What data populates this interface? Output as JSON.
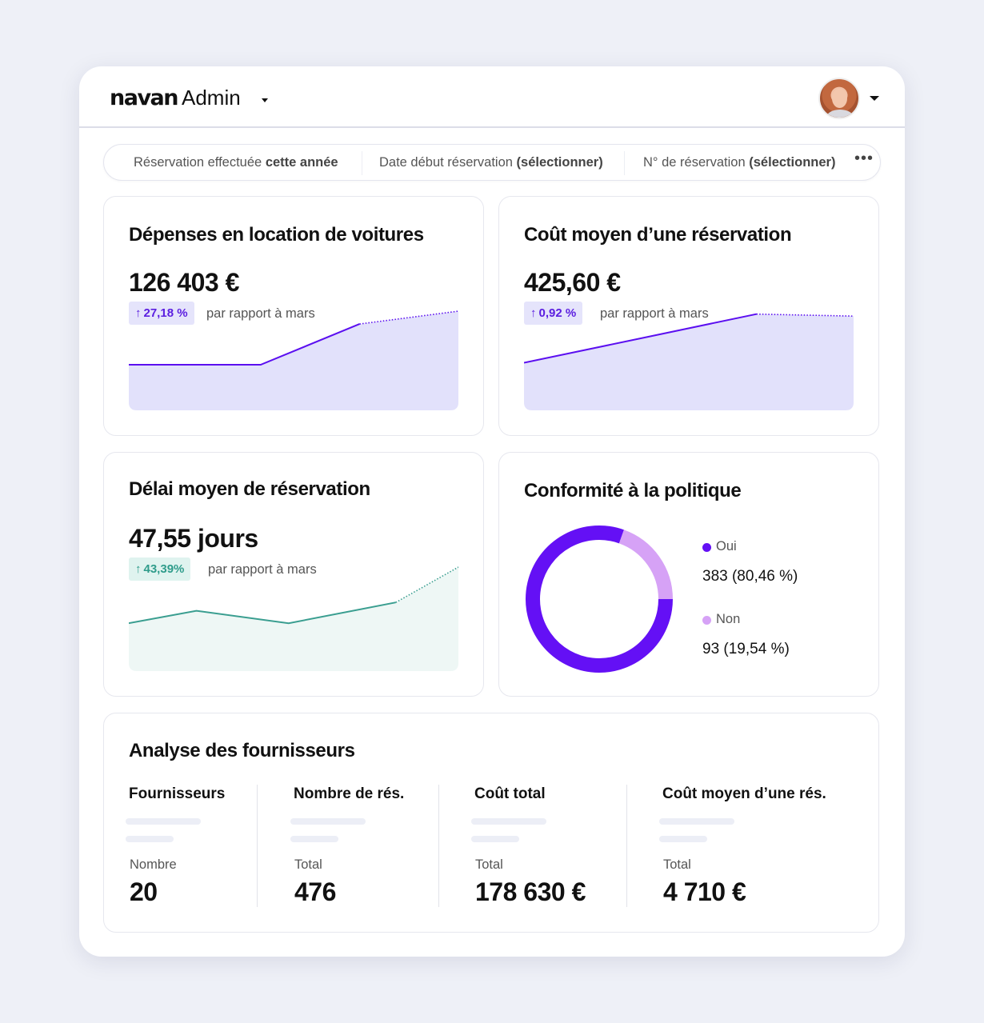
{
  "header": {
    "logo": "navan",
    "app_label": "Admin",
    "logo_menu_icon": "caret-down-icon",
    "user_menu_icon": "caret-down-icon",
    "avatar_icon": "user-avatar"
  },
  "filters": [
    {
      "label": "Réservation effectuée",
      "value": "cette année"
    },
    {
      "label": "Date début réservation",
      "value": "(sélectionner)"
    },
    {
      "label": "N° de réservation",
      "value": "(sélectionner)"
    }
  ],
  "more_label": "•••",
  "colors": {
    "accent": "#5b0ff0",
    "area_purple": "#e2e1fb",
    "teal": "#3a9e90",
    "area_teal": "#eef7f5",
    "donut_oui": "#6410f5",
    "donut_non": "#d6a2f6"
  },
  "cards": {
    "spend": {
      "title": "Dépenses en location de voitures",
      "value": "126 403 €",
      "change": "27,18 %",
      "change_icon": "arrow-up-icon",
      "compare": "par rapport à mars"
    },
    "avg_cost": {
      "title": "Coût moyen d’une réservation",
      "value": "425,60 €",
      "change": "0,92 %",
      "change_icon": "arrow-up-icon",
      "compare": "par rapport à mars"
    },
    "lead_time": {
      "title": "Délai moyen de réservation",
      "value": "47,55 jours",
      "change": "43,39%",
      "change_icon": "arrow-up-icon",
      "compare": "par rapport à mars"
    },
    "compliance": {
      "title": "Conformité à la politique",
      "yes_label": "Oui",
      "yes_value": "383 (80,46 %)",
      "no_label": "Non",
      "no_value": "93 (19,54 %)"
    }
  },
  "suppliers": {
    "title": "Analyse des fournisseurs",
    "columns": [
      {
        "header": "Fournisseurs",
        "sub": "Nombre",
        "value": "20"
      },
      {
        "header": "Nombre de rés.",
        "sub": "Total",
        "value": "476"
      },
      {
        "header": "Coût total",
        "sub": "Total",
        "value": "178 630 €"
      },
      {
        "header": "Coût moyen d’une rés.",
        "sub": "Total",
        "value": "4 710 €"
      }
    ]
  },
  "chart_data": [
    {
      "type": "area",
      "series": [
        {
          "values": [
            0.46,
            0.46,
            0.46,
            0.87,
            1.0
          ]
        }
      ],
      "note_projection_from_index": 3
    },
    {
      "type": "area",
      "series": [
        {
          "values": [
            0.48,
            0.73,
            0.97,
            0.95
          ]
        }
      ],
      "note_projection_from_index": 2
    },
    {
      "type": "area",
      "series": [
        {
          "values": [
            0.46,
            0.58,
            0.46,
            0.66,
            1.0
          ]
        }
      ],
      "note_projection_from_index": 3
    },
    {
      "type": "pie",
      "categories": [
        "Oui",
        "Non"
      ],
      "values": [
        80.46,
        19.54
      ]
    }
  ]
}
